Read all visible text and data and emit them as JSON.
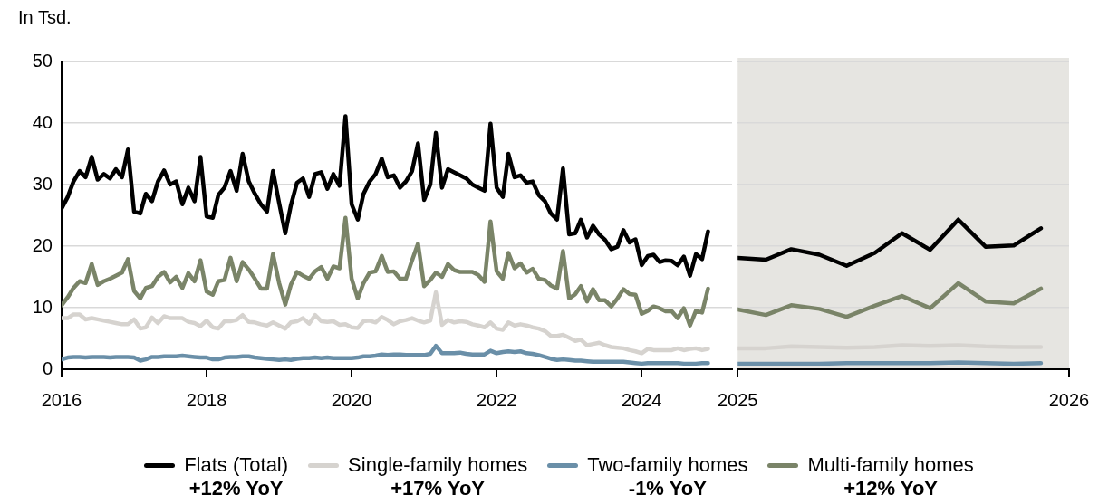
{
  "chart_data": [
    {
      "type": "line",
      "ylabel": "In Tsd.",
      "ylim": [
        0,
        50
      ],
      "yticks": [
        0,
        10,
        20,
        30,
        40,
        50
      ],
      "xlim": [
        "2016-01",
        "2025-04"
      ],
      "xticks": [
        "2016",
        "2018",
        "2020",
        "2022",
        "2024"
      ],
      "grid": "y",
      "legend": "bottom",
      "annotations": [
        "+12% YoY",
        "+17% YoY",
        "-1% YoY",
        "+12% YoY"
      ],
      "x": [
        "2016-01",
        "2016-02",
        "2016-03",
        "2016-04",
        "2016-05",
        "2016-06",
        "2016-07",
        "2016-08",
        "2016-09",
        "2016-10",
        "2016-11",
        "2016-12",
        "2017-01",
        "2017-02",
        "2017-03",
        "2017-04",
        "2017-05",
        "2017-06",
        "2017-07",
        "2017-08",
        "2017-09",
        "2017-10",
        "2017-11",
        "2017-12",
        "2018-01",
        "2018-02",
        "2018-03",
        "2018-04",
        "2018-05",
        "2018-06",
        "2018-07",
        "2018-08",
        "2018-09",
        "2018-10",
        "2018-11",
        "2018-12",
        "2019-01",
        "2019-02",
        "2019-03",
        "2019-04",
        "2019-05",
        "2019-06",
        "2019-07",
        "2019-08",
        "2019-09",
        "2019-10",
        "2019-11",
        "2019-12",
        "2020-01",
        "2020-02",
        "2020-03",
        "2020-04",
        "2020-05",
        "2020-06",
        "2020-07",
        "2020-08",
        "2020-09",
        "2020-10",
        "2020-11",
        "2020-12",
        "2021-01",
        "2021-02",
        "2021-03",
        "2021-04",
        "2021-05",
        "2021-06",
        "2021-07",
        "2021-08",
        "2021-09",
        "2021-10",
        "2021-11",
        "2021-12",
        "2022-01",
        "2022-02",
        "2022-03",
        "2022-04",
        "2022-05",
        "2022-06",
        "2022-07",
        "2022-08",
        "2022-09",
        "2022-10",
        "2022-11",
        "2022-12",
        "2023-01",
        "2023-02",
        "2023-03",
        "2023-04",
        "2023-05",
        "2023-06",
        "2023-07",
        "2023-08",
        "2023-09",
        "2023-10",
        "2023-11",
        "2023-12",
        "2024-01",
        "2024-02",
        "2024-03",
        "2024-04",
        "2024-05",
        "2024-06",
        "2024-07",
        "2024-08",
        "2024-09",
        "2024-10",
        "2024-11",
        "2024-12"
      ],
      "series": [
        {
          "name": "Flats (Total)",
          "color": "#000000",
          "values": [
            26.1,
            28,
            30.5,
            32.2,
            31.2,
            34.5,
            30.8,
            31.7,
            31,
            32.5,
            31.2,
            35.7,
            25.6,
            25.3,
            28.5,
            27.3,
            30.5,
            32.3,
            30,
            30.5,
            26.8,
            29.5,
            27.3,
            34.5,
            24.8,
            24.6,
            28.3,
            29.5,
            32.2,
            29,
            35,
            30.5,
            28.5,
            26.8,
            25.6,
            32.2,
            27,
            22.1,
            26.6,
            30.3,
            31,
            28,
            31.7,
            32,
            29.3,
            31.7,
            29.8,
            41.1,
            26.8,
            24.3,
            28.5,
            30.5,
            31.7,
            34.2,
            31.2,
            31.5,
            29.5,
            30.5,
            32.2,
            36.7,
            27.5,
            30,
            38.4,
            29.5,
            32.5,
            32,
            31.5,
            31,
            30,
            29.5,
            29,
            39.9,
            29.5,
            28,
            35,
            31.2,
            31.5,
            30.3,
            30.5,
            28.3,
            27.3,
            25.3,
            24.3,
            32.6,
            21.9,
            22.1,
            24.3,
            21.4,
            23.3,
            21.9,
            21,
            19.5,
            19.9,
            22.6,
            20.6,
            21.1,
            16.9,
            18.4,
            18.6,
            17.4,
            17.7,
            17.6,
            16.9,
            18.3,
            15.2,
            18.7,
            17.9,
            22.4
          ]
        },
        {
          "name": "Single-family homes",
          "color": "#d6d3cf",
          "values": [
            8.3,
            8.3,
            8.9,
            8.9,
            8.1,
            8.3,
            8.1,
            7.9,
            7.7,
            7.5,
            7.3,
            7.3,
            8.1,
            6.6,
            6.8,
            8.4,
            7.5,
            8.6,
            8.3,
            8.3,
            8.3,
            7.7,
            7.5,
            7,
            7.9,
            6.8,
            6.6,
            7.8,
            7.8,
            8,
            8.8,
            7.7,
            7.6,
            7.3,
            7.1,
            7.6,
            7.1,
            6.6,
            7.6,
            7.8,
            8.3,
            7.4,
            8.8,
            7.8,
            7.7,
            7.8,
            7.2,
            7.3,
            6.8,
            6.7,
            7.8,
            7.9,
            7.6,
            8.5,
            8,
            7.3,
            7.8,
            8,
            8.3,
            7.9,
            7.6,
            7.9,
            12.5,
            7.2,
            8,
            7.6,
            7.8,
            7.7,
            7.3,
            7.1,
            6.8,
            7.6,
            6.6,
            6.4,
            7.6,
            7.1,
            7.3,
            7.1,
            6.8,
            6.6,
            6.2,
            5.4,
            5.4,
            5.6,
            5.1,
            4.6,
            4.8,
            3.9,
            4.1,
            4.3,
            3.9,
            3.6,
            3.5,
            3.4,
            3.1,
            2.9,
            2.6,
            3.3,
            3.1,
            3.1,
            3.1,
            3.1,
            3.4,
            3.1,
            3.3,
            3.4,
            3.1,
            3.3
          ]
        },
        {
          "name": "Two-family homes",
          "color": "#6a8fa8",
          "values": [
            1.6,
            1.9,
            2,
            2,
            1.9,
            2,
            2,
            2,
            1.9,
            2,
            2,
            2,
            1.9,
            1.4,
            1.6,
            2,
            2,
            2.1,
            2.1,
            2.1,
            2.2,
            2.1,
            2,
            1.9,
            1.9,
            1.6,
            1.6,
            1.9,
            2,
            2,
            2.1,
            2.1,
            1.9,
            1.8,
            1.7,
            1.6,
            1.5,
            1.6,
            1.5,
            1.7,
            1.8,
            1.8,
            1.9,
            1.8,
            1.9,
            1.8,
            1.8,
            1.8,
            1.8,
            1.9,
            2.1,
            2.1,
            2.2,
            2.4,
            2.3,
            2.4,
            2.4,
            2.3,
            2.3,
            2.3,
            2.3,
            2.5,
            3.8,
            2.6,
            2.6,
            2.6,
            2.7,
            2.5,
            2.4,
            2.4,
            2.4,
            3,
            2.6,
            2.8,
            2.9,
            2.8,
            2.9,
            2.6,
            2.5,
            2.3,
            2,
            1.7,
            1.5,
            1.6,
            1.5,
            1.4,
            1.4,
            1.3,
            1.2,
            1.2,
            1.2,
            1.2,
            1.2,
            1.2,
            1.1,
            1,
            0.9,
            1,
            1,
            1,
            1,
            1,
            1,
            0.9,
            0.9,
            0.9,
            1,
            1
          ]
        },
        {
          "name": "Multi-family homes",
          "color": "#7a8468",
          "values": [
            10.4,
            11.7,
            13.2,
            14.3,
            14,
            17.1,
            13.7,
            14.3,
            14.7,
            15.2,
            15.7,
            17.9,
            12.7,
            11.5,
            13.2,
            13.5,
            15,
            15.8,
            14.1,
            15,
            13.2,
            15.6,
            14.3,
            17.7,
            12.6,
            12.1,
            14.3,
            14.5,
            18.1,
            14.3,
            17.4,
            16.2,
            14.7,
            13.1,
            13.1,
            18.7,
            14,
            10.5,
            13.7,
            15.8,
            15.2,
            14.7,
            15.9,
            16.6,
            14.7,
            16.7,
            16.4,
            24.6,
            14.7,
            11.5,
            14,
            15.7,
            15.9,
            18.4,
            15.8,
            15.9,
            14.7,
            14.7,
            17.7,
            20.4,
            13.5,
            14.5,
            15.7,
            15,
            17.1,
            16.1,
            15.8,
            15.8,
            15.8,
            15.3,
            14.2,
            24,
            15.9,
            14.7,
            18.9,
            16.4,
            17.2,
            15.7,
            16.3,
            14.7,
            14.5,
            13.6,
            13.1,
            19.2,
            11.5,
            12.2,
            13.5,
            11,
            13,
            11.2,
            11.2,
            10.2,
            11.5,
            13,
            12.2,
            12.1,
            9,
            9.5,
            10.2,
            9.9,
            9.4,
            9.4,
            8.3,
            9.9,
            7.1,
            9.5,
            9.2,
            13.1
          ]
        }
      ]
    },
    {
      "type": "line",
      "ylim": [
        0,
        50
      ],
      "yticks": [
        0,
        10,
        20,
        30,
        40,
        50
      ],
      "xlim": [
        "2025-01",
        "2026-01"
      ],
      "xticks": [
        "2025",
        "2026"
      ],
      "grid": "y",
      "tick_labels": "x",
      "bands": [
        {
          "axis": "x",
          "from": "2025-01",
          "to": "2026-01",
          "color": "#e6e5e1"
        }
      ],
      "x": [
        "2025-01",
        "2025-02",
        "2025-03",
        "2025-04",
        "2025-05",
        "2025-06",
        "2025-07",
        "2025-08",
        "2025-09",
        "2025-10",
        "2025-11",
        "2025-12"
      ],
      "series": [
        {
          "color": "#000000",
          "values": [
            18.1,
            17.8,
            19.5,
            18.6,
            16.8,
            18.9,
            22.1,
            19.4,
            24.3,
            19.9,
            20.1,
            22.9
          ]
        },
        {
          "color": "#d6d3cf",
          "values": [
            3.4,
            3.4,
            3.7,
            3.6,
            3.5,
            3.6,
            3.9,
            3.8,
            3.9,
            3.7,
            3.6,
            3.6
          ]
        },
        {
          "color": "#6a8fa8",
          "values": [
            0.9,
            0.9,
            0.9,
            0.9,
            1,
            1,
            1,
            1,
            1.1,
            1,
            0.9,
            1
          ]
        },
        {
          "color": "#7a8468",
          "values": [
            9.7,
            8.8,
            10.4,
            9.8,
            8.5,
            10.3,
            11.9,
            9.9,
            14,
            11,
            10.7,
            13.1
          ]
        }
      ]
    }
  ]
}
